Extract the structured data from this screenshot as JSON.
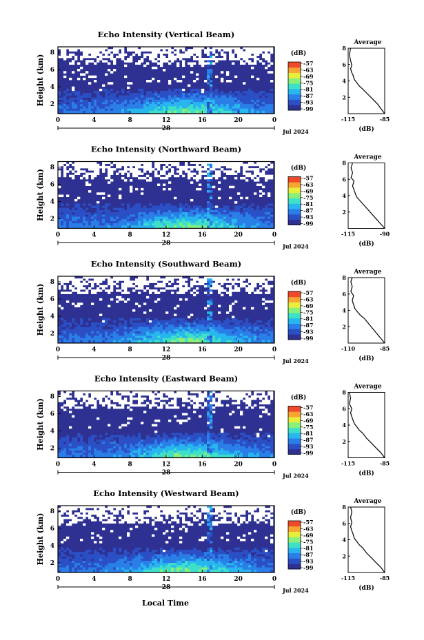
{
  "figure": {
    "xlabel": "Local Time"
  },
  "chart_data": [
    {
      "type": "heatmap",
      "title": "Echo Intensity (Vertical Beam)",
      "ylabel": "Height (km)",
      "xlim": [
        0,
        24
      ],
      "ylim": [
        0,
        6
      ],
      "xticks": [
        "0",
        "4",
        "8",
        "12",
        "16",
        "20",
        "0"
      ],
      "yticks": [
        "2",
        "4",
        "6",
        "8"
      ],
      "date_label": "28",
      "month_year_label": "Jul 2024",
      "colorbar": {
        "label": "(dB)",
        "ticks": [
          "-57",
          "-63",
          "-69",
          "-75",
          "-81",
          "-87",
          "-93",
          "-99"
        ],
        "range": [
          -99,
          -57
        ]
      },
      "avg_profile": {
        "title": "Average",
        "xlabel": "(dB)",
        "xticks": [
          "-115",
          "-85"
        ],
        "xlim": [
          -115,
          -85
        ],
        "yticks": [
          "2",
          "4",
          "6",
          "8"
        ],
        "x": [
          -85,
          -88,
          -91,
          -95,
          -99,
          -103,
          -106,
          -108,
          -110,
          -111,
          -112,
          -113,
          -112,
          -113,
          -114,
          -113
        ],
        "y": [
          0.0,
          0.6,
          1.2,
          1.8,
          2.4,
          3.0,
          3.4,
          3.8,
          4.2,
          4.7,
          5.0,
          5.5,
          5.9,
          6.5,
          7.2,
          8.0
        ]
      }
    },
    {
      "type": "heatmap",
      "title": "Echo Intensity (Northward Beam)",
      "ylabel": "Height (km)",
      "xlim": [
        0,
        24
      ],
      "ylim": [
        0,
        6
      ],
      "xticks": [
        "0",
        "4",
        "8",
        "12",
        "16",
        "20",
        "0"
      ],
      "yticks": [
        "2",
        "4",
        "6",
        "8"
      ],
      "date_label": "28",
      "month_year_label": "Jul 2024",
      "colorbar": {
        "label": "(dB)",
        "ticks": [
          "-57",
          "-63",
          "-69",
          "-75",
          "-81",
          "-87",
          "-93",
          "-99"
        ],
        "range": [
          -99,
          -57
        ]
      },
      "avg_profile": {
        "title": "Average",
        "xlabel": "(dB)",
        "xticks": [
          "-115",
          "-90"
        ],
        "xlim": [
          -115,
          -90
        ],
        "yticks": [
          "2",
          "4",
          "6",
          "8"
        ],
        "x": [
          -90,
          -93,
          -96,
          -99,
          -102,
          -105,
          -107,
          -109,
          -110,
          -111,
          -112,
          -111,
          -113,
          -112,
          -113,
          -112
        ],
        "y": [
          0.0,
          0.6,
          1.2,
          1.8,
          2.4,
          3.0,
          3.4,
          3.8,
          4.2,
          4.7,
          5.2,
          5.8,
          6.2,
          6.8,
          7.4,
          8.0
        ]
      }
    },
    {
      "type": "heatmap",
      "title": "Echo Intensity (Southward Beam)",
      "ylabel": "Height (km)",
      "xlim": [
        0,
        24
      ],
      "ylim": [
        0,
        6
      ],
      "xticks": [
        "0",
        "4",
        "8",
        "12",
        "16",
        "20",
        "0"
      ],
      "yticks": [
        "2",
        "4",
        "6",
        "8"
      ],
      "date_label": "28",
      "month_year_label": "Jul 2024",
      "colorbar": {
        "label": "(dB)",
        "ticks": [
          "-57",
          "-63",
          "-69",
          "-75",
          "-81",
          "-87",
          "-93",
          "-99"
        ],
        "range": [
          -99,
          -57
        ]
      },
      "avg_profile": {
        "title": "Average",
        "xlabel": "(dB)",
        "xticks": [
          "-110",
          "-85"
        ],
        "xlim": [
          -112,
          -85
        ],
        "yticks": [
          "2",
          "4",
          "6",
          "8"
        ],
        "x": [
          -85,
          -88,
          -91,
          -94,
          -97,
          -100,
          -103,
          -105,
          -107,
          -108,
          -109,
          -108,
          -110,
          -109,
          -110,
          -109
        ],
        "y": [
          0.0,
          0.6,
          1.2,
          1.8,
          2.4,
          3.0,
          3.4,
          3.8,
          4.2,
          4.7,
          5.2,
          5.8,
          6.3,
          6.9,
          7.5,
          8.0
        ]
      }
    },
    {
      "type": "heatmap",
      "title": "Echo Intensity (Eastward Beam)",
      "ylabel": "Height (km)",
      "xlim": [
        0,
        24
      ],
      "ylim": [
        0,
        6
      ],
      "xticks": [
        "0",
        "4",
        "8",
        "12",
        "16",
        "20",
        "0"
      ],
      "yticks": [
        "2",
        "4",
        "6",
        "8"
      ],
      "date_label": "28",
      "month_year_label": "Jul 2024",
      "colorbar": {
        "label": "(dB)",
        "ticks": [
          "-57",
          "-63",
          "-69",
          "-75",
          "-81",
          "-87",
          "-93",
          "-99"
        ],
        "range": [
          -99,
          -57
        ]
      },
      "avg_profile": {
        "title": "Average",
        "xlabel": "(dB)",
        "xticks": [
          "-115",
          "-85"
        ],
        "xlim": [
          -115,
          -85
        ],
        "yticks": [
          "2",
          "4",
          "6",
          "8"
        ],
        "x": [
          -85,
          -88,
          -92,
          -96,
          -100,
          -103,
          -106,
          -108,
          -110,
          -111,
          -112,
          -113,
          -112,
          -114,
          -113,
          -114
        ],
        "y": [
          0.0,
          0.6,
          1.2,
          1.8,
          2.4,
          3.0,
          3.4,
          3.8,
          4.2,
          4.6,
          5.0,
          5.5,
          6.0,
          6.6,
          7.3,
          8.0
        ]
      }
    },
    {
      "type": "heatmap",
      "title": "Echo Intensity (Westward Beam)",
      "ylabel": "Height (km)",
      "xlim": [
        0,
        24
      ],
      "ylim": [
        0,
        6
      ],
      "xticks": [
        "0",
        "4",
        "8",
        "12",
        "16",
        "20",
        "0"
      ],
      "yticks": [
        "2",
        "4",
        "6",
        "8"
      ],
      "date_label": "28",
      "month_year_label": "Jul 2024",
      "colorbar": {
        "label": "(dB)",
        "ticks": [
          "-57",
          "-63",
          "-69",
          "-75",
          "-81",
          "-87",
          "-93",
          "-99"
        ],
        "range": [
          -99,
          -57
        ]
      },
      "avg_profile": {
        "title": "Average",
        "xlabel": "(dB)",
        "xticks": [
          "-115",
          "-85"
        ],
        "xlim": [
          -115,
          -85
        ],
        "yticks": [
          "2",
          "4",
          "6",
          "8"
        ],
        "x": [
          -85,
          -88,
          -92,
          -96,
          -100,
          -103,
          -106,
          -108,
          -110,
          -111,
          -112,
          -113,
          -112,
          -113,
          -112,
          -113
        ],
        "y": [
          0.0,
          0.6,
          1.2,
          1.8,
          2.4,
          3.0,
          3.4,
          3.8,
          4.2,
          4.7,
          5.1,
          5.6,
          6.1,
          6.7,
          7.4,
          8.0
        ]
      }
    }
  ],
  "colors": {
    "background_field": "#2e3192",
    "cloud_gap": "#ffffff",
    "colormap": [
      "#2e3192",
      "#2b4fc4",
      "#2a7ee8",
      "#28b6ee",
      "#3fe0c8",
      "#8af07a",
      "#e8ee3c",
      "#f7a533",
      "#ef4a2a"
    ]
  }
}
